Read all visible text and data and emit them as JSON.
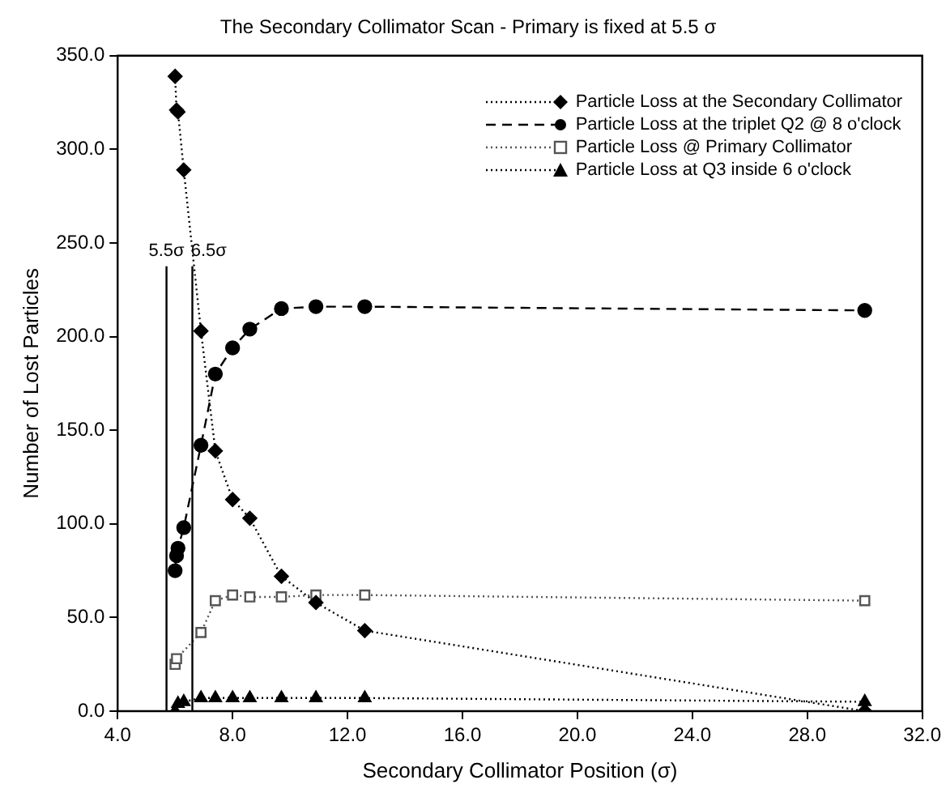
{
  "chart_data": {
    "type": "line",
    "title": "The Secondary Collimator Scan - Primary is fixed at 5.5 σ",
    "xlabel": "Secondary Collimator Position (σ)",
    "ylabel": "Number of Lost Particles",
    "x": [
      6.0,
      6.05,
      6.1,
      6.3,
      6.9,
      7.4,
      8.0,
      8.6,
      9.7,
      10.9,
      12.6,
      30.0
    ],
    "series": [
      {
        "name": "Particle Loss at the Secondary Collimator",
        "color": "#000000",
        "marker": "diamond",
        "line_style": "dotted",
        "values": [
          339,
          321,
          320,
          289,
          203,
          139,
          113,
          103,
          72,
          58,
          43,
          0
        ]
      },
      {
        "name": "Particle Loss at the triplet Q2 @ 8 o'clock",
        "color": "#000000",
        "marker": "circle",
        "line_style": "dashed",
        "values": [
          75,
          83,
          87,
          98,
          142,
          180,
          194,
          204,
          215,
          216,
          216,
          214
        ]
      },
      {
        "name": "Particle Loss @ Primary Collimator",
        "color": "#555555",
        "marker": "square",
        "line_style": "dotted",
        "values": [
          25,
          28,
          null,
          null,
          42,
          59,
          62,
          61,
          61,
          62,
          62,
          59
        ]
      },
      {
        "name": "Particle Loss at Q3 inside 6 o'clock",
        "color": "#000000",
        "marker": "triangle",
        "line_style": "dotted",
        "values": [
          0,
          null,
          4,
          5,
          7,
          7,
          7,
          7,
          7,
          7,
          7,
          5
        ]
      }
    ],
    "xlim": [
      4,
      32
    ],
    "xticks": [
      {
        "value": 4,
        "label": "4.0"
      },
      {
        "value": 8,
        "label": "8.0"
      },
      {
        "value": 12,
        "label": "12.0"
      },
      {
        "value": 16,
        "label": "16.0"
      },
      {
        "value": 20,
        "label": "20.0"
      },
      {
        "value": 24,
        "label": "24.0"
      },
      {
        "value": 28,
        "label": "28.0"
      },
      {
        "value": 32,
        "label": "32.0"
      }
    ],
    "ylim": [
      0,
      350
    ],
    "yticks": [
      {
        "value": 0,
        "label": "0.0"
      },
      {
        "value": 50,
        "label": "50.0"
      },
      {
        "value": 100,
        "label": "100.0"
      },
      {
        "value": 150,
        "label": "150.0"
      },
      {
        "value": 200,
        "label": "200.0"
      },
      {
        "value": 250,
        "label": "250.0"
      },
      {
        "value": 300,
        "label": "300.0"
      },
      {
        "value": 350,
        "label": "350.0"
      }
    ],
    "ref_lines": [
      {
        "axis": "x",
        "value": 5.7,
        "label": "5.5σ"
      },
      {
        "axis": "x",
        "value": 6.6,
        "label": "6.5σ"
      }
    ],
    "grid": false,
    "legend": "top right"
  }
}
